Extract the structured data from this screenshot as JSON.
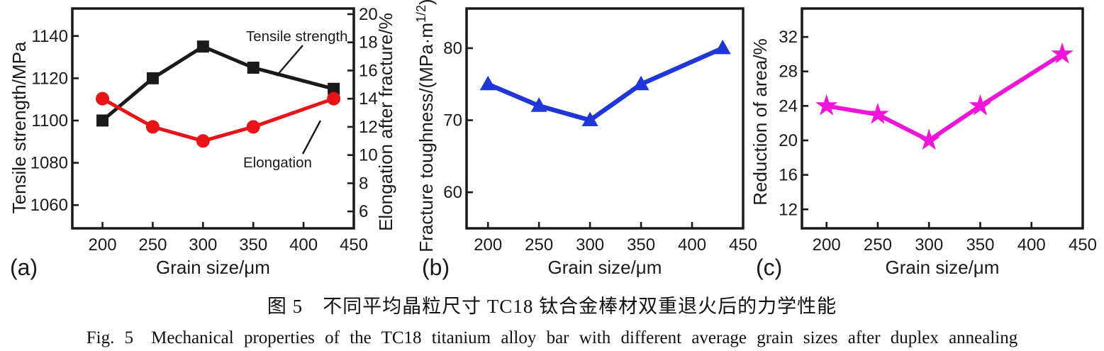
{
  "figure": {
    "caption_cn": "图 5　不同平均晶粒尺寸 TC18 钛合金棒材双重退火后的力学性能",
    "caption_en": "Fig. 5　Mechanical properties of the TC18 titanium alloy bar with different average grain sizes after duplex annealing"
  },
  "colors": {
    "ink": "#1a1a1a",
    "tensile_black": "#1a1a1a",
    "elongation_red": "#e81418",
    "toughness_blue": "#2236d8",
    "reduction_magenta": "#f013d8"
  },
  "chart_data": [
    {
      "id": "a",
      "panel_label": "(a)",
      "type": "line",
      "xlabel": "Grain size/μm",
      "x": [
        200,
        250,
        300,
        350,
        430
      ],
      "xticks": [
        200,
        250,
        300,
        350,
        400,
        450
      ],
      "xlim": [
        170,
        450
      ],
      "grid": false,
      "axes": [
        {
          "side": "left",
          "label_parts": [
            {
              "t": "Tensile strength/MPa"
            }
          ],
          "ticks": [
            1060,
            1080,
            1100,
            1120,
            1140
          ],
          "lim": [
            1049,
            1153
          ]
        },
        {
          "side": "right",
          "label_parts": [
            {
              "t": "Elongation after fracture/%"
            }
          ],
          "ticks": [
            6,
            8,
            10,
            12,
            14,
            16,
            18,
            20
          ],
          "lim": [
            4.8,
            20.4
          ]
        }
      ],
      "series": [
        {
          "name": "Tensile strength",
          "axis": 0,
          "marker": "filled-square",
          "color": "#1a1a1a",
          "values": [
            1100,
            1120,
            1135,
            1125,
            1115
          ]
        },
        {
          "name": "Elongation",
          "axis": 1,
          "marker": "filled-circle",
          "color": "#e81418",
          "values": [
            14,
            12,
            11,
            12,
            14
          ]
        }
      ],
      "annotations": [
        {
          "text": "Tensile strength"
        },
        {
          "text": "Elongation"
        }
      ]
    },
    {
      "id": "b",
      "panel_label": "(b)",
      "type": "line",
      "xlabel": "Grain size/μm",
      "x": [
        200,
        250,
        300,
        350,
        430
      ],
      "xticks": [
        200,
        250,
        300,
        350,
        400,
        450
      ],
      "xlim": [
        179,
        450
      ],
      "grid": false,
      "axes": [
        {
          "side": "left",
          "label_parts": [
            {
              "t": "Fracture toughness/(MPa·m"
            },
            {
              "t": "1/2",
              "sup": true
            },
            {
              "t": ")"
            }
          ],
          "ticks": [
            60,
            70,
            80
          ],
          "lim": [
            55,
            85.5
          ]
        }
      ],
      "series": [
        {
          "name": "Fracture toughness",
          "axis": 0,
          "marker": "filled-triangle",
          "color": "#2236d8",
          "values": [
            75,
            72,
            70,
            75,
            80
          ]
        }
      ],
      "annotations": []
    },
    {
      "id": "c",
      "panel_label": "(c)",
      "type": "line",
      "xlabel": "Grain size/μm",
      "x": [
        200,
        250,
        300,
        350,
        430
      ],
      "xticks": [
        200,
        250,
        300,
        350,
        400,
        450
      ],
      "xlim": [
        176,
        450
      ],
      "grid": false,
      "axes": [
        {
          "side": "left",
          "label_parts": [
            {
              "t": "Reduction of area/%"
            }
          ],
          "ticks": [
            12,
            16,
            20,
            24,
            28,
            32
          ],
          "lim": [
            9.8,
            35.3
          ]
        }
      ],
      "series": [
        {
          "name": "Reduction of area",
          "axis": 0,
          "marker": "filled-star",
          "color": "#f013d8",
          "values": [
            24,
            23,
            20,
            24,
            30
          ]
        }
      ],
      "annotations": []
    }
  ]
}
